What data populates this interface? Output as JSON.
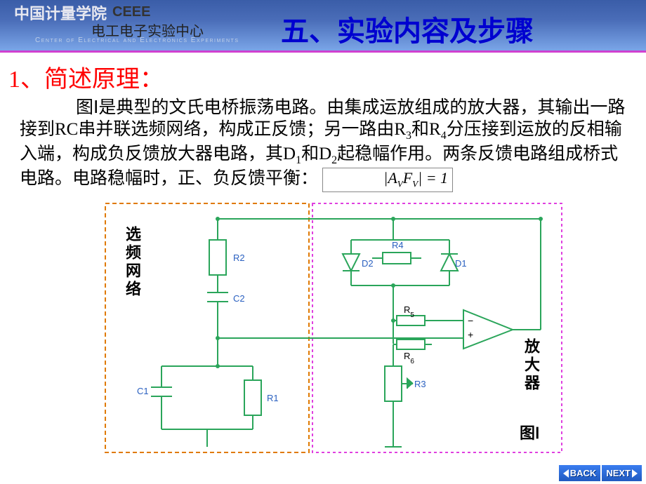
{
  "header": {
    "logo_main": "中国计量学院",
    "logo_ceee": "CEEE",
    "logo_sub": "电工电子实验中心",
    "logo_eng": "Center of Electrical and Electronics Experiments",
    "title": "五、实验内容及步骤"
  },
  "body": {
    "h1": "1、简述原理：",
    "para_html": "图Ⅰ是典型的文氏电桥振荡电路。由集成运放组成的放大器，其输出一路接到RC串并联选频网络，构成正反馈；另一路由R<sub>3</sub>和R<sub>4</sub>分压接到运放的反相输入端，构成负反馈放大器电路，其D<sub>1</sub>和D<sub>2</sub>起稳幅作用。两条反馈电路组成桥式电路。电路稳幅时，正、负反馈平衡：",
    "equation": "|A_V F_V| = 1"
  },
  "diagram": {
    "left_box_label": "选频网络",
    "right_top_label": "放大器",
    "caption": "图Ⅰ",
    "box_left": {
      "stroke": "#e07a00",
      "dash": "6,4"
    },
    "box_right": {
      "stroke": "#e040e0",
      "dash": "4,4"
    },
    "wire_color": "#2aa55a",
    "label_color": "#2a60c0",
    "components": {
      "R1": "R1",
      "R2": "R2",
      "R3": "R3",
      "R4": "R4",
      "R5": "R5",
      "R6": "R6",
      "C1": "C1",
      "C2": "C2",
      "D1": "D1",
      "D2": "D2"
    },
    "opamp": {
      "plus": "+",
      "minus": "−"
    }
  },
  "nav": {
    "back": "BACK",
    "next": "NEXT"
  }
}
